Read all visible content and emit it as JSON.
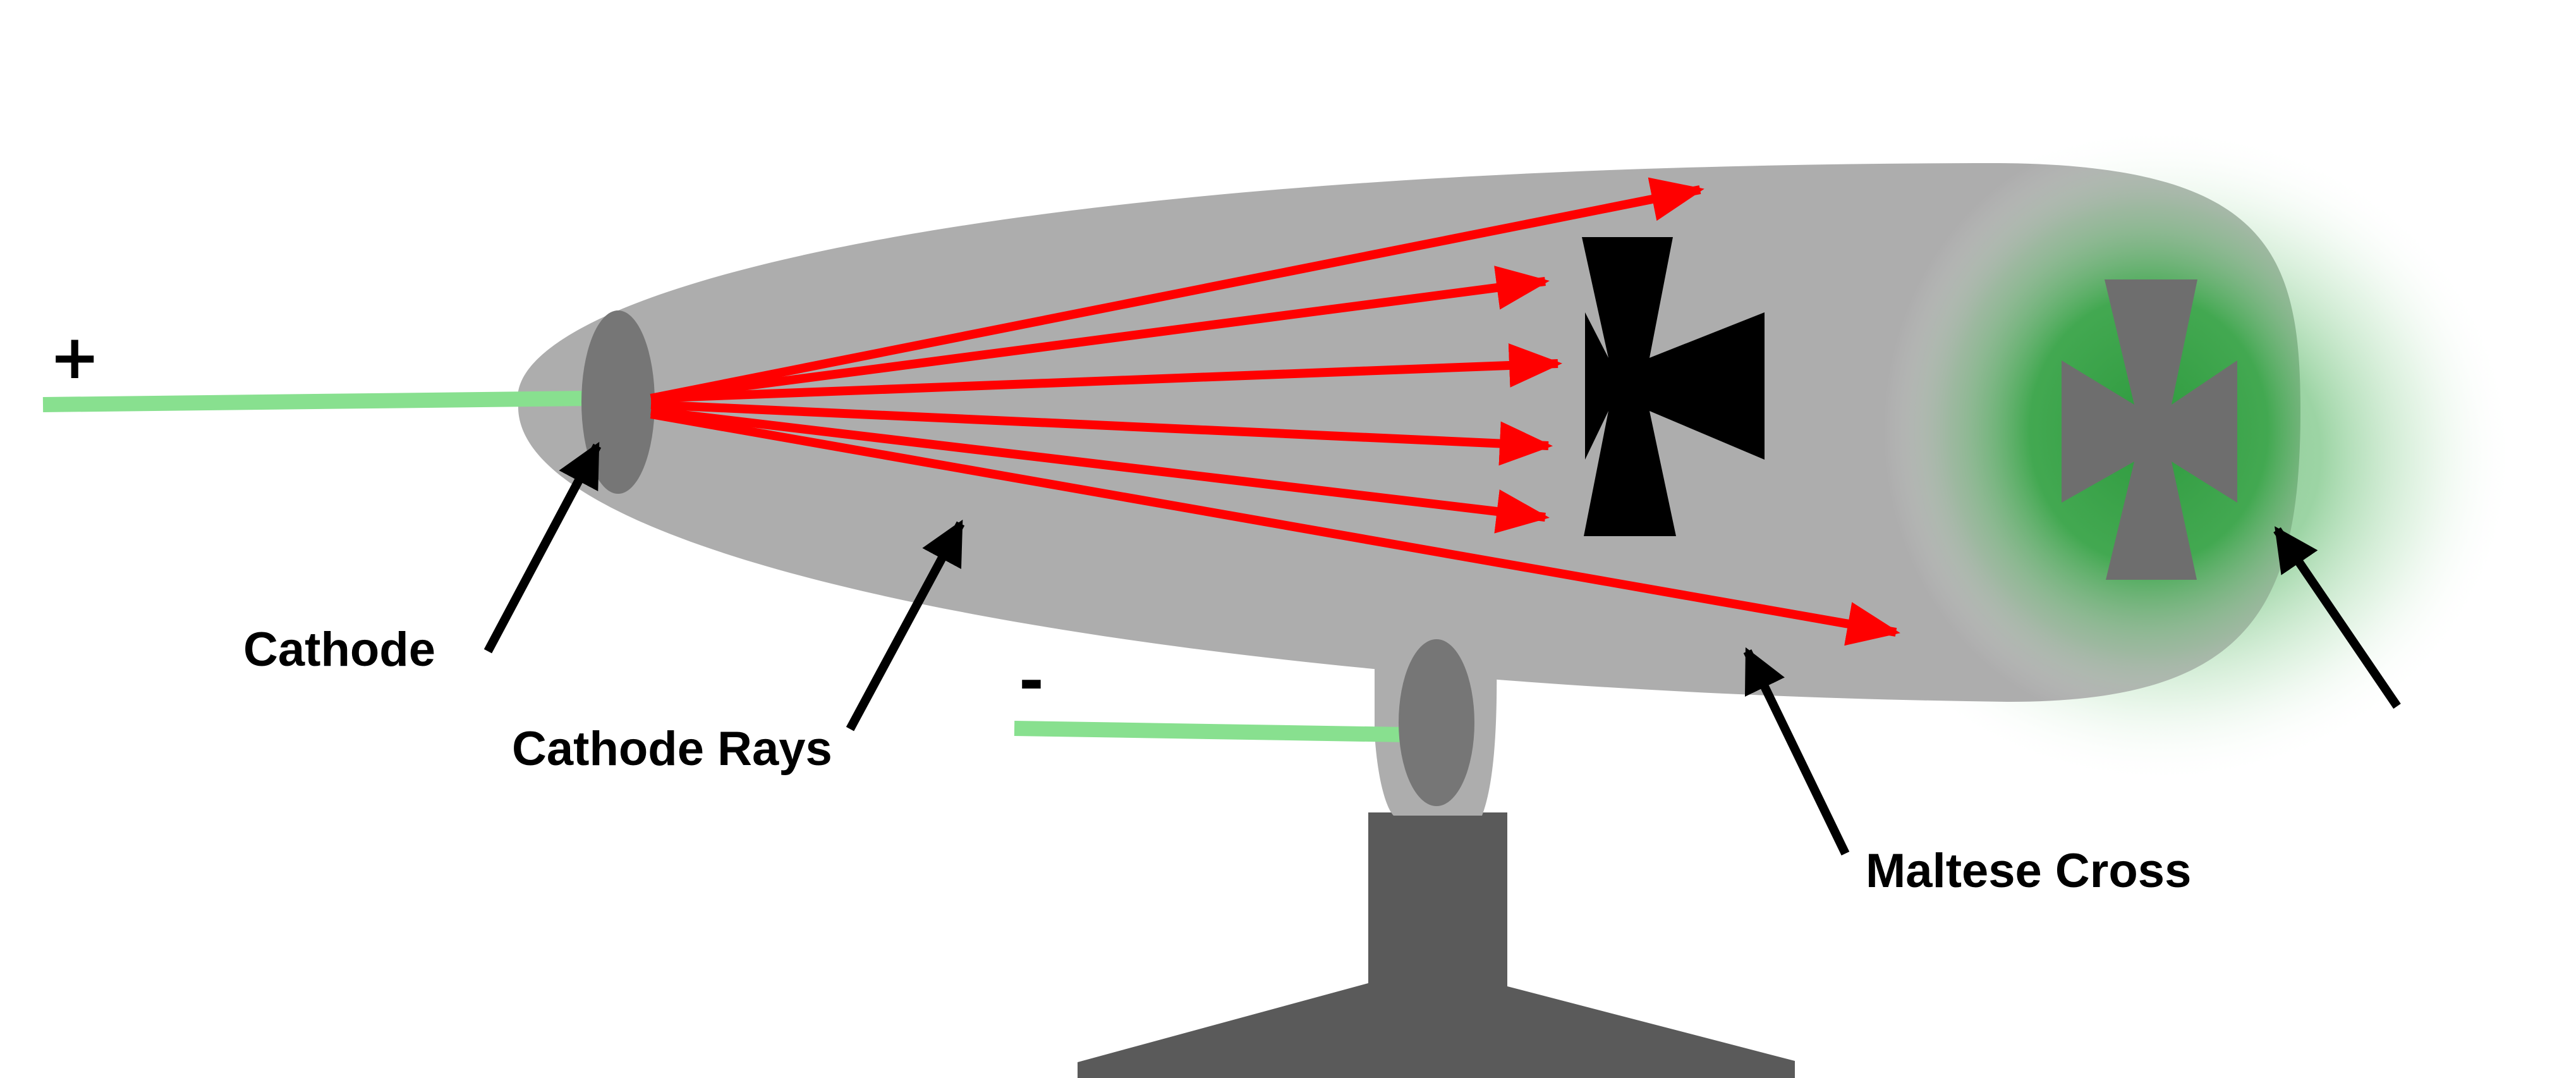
{
  "labels": {
    "positive_terminal": "+",
    "negative_terminal": "-",
    "cathode": "Cathode",
    "cathode_rays": "Cathode Rays",
    "maltese_cross": "Maltese Cross"
  },
  "colors": {
    "tube": "#adadad",
    "electrode": "#767676",
    "stand": "#5a5a5a",
    "wire": "#88e08f",
    "ray": "#ff0000",
    "cross": "#000000",
    "shadow_cross": "#6e6e6e",
    "glow": "#2e9a3e",
    "arrow": "#000000"
  }
}
